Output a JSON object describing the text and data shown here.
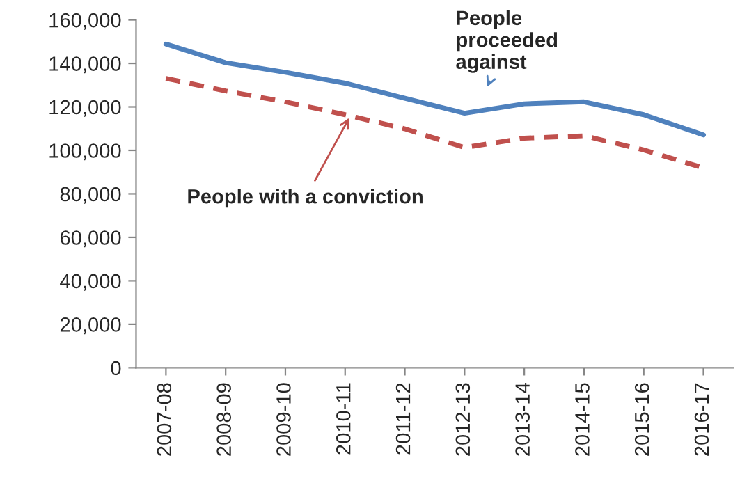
{
  "chart_data": {
    "type": "line",
    "categories": [
      "2007-08",
      "2008-09",
      "2009-10",
      "2010-11",
      "2011-12",
      "2012-13",
      "2013-14",
      "2014-15",
      "2015-16",
      "2016-17"
    ],
    "series": [
      {
        "name": "People proceeded against",
        "color": "#4f81bd",
        "line_style": "solid",
        "values": [
          148900,
          140300,
          135900,
          130900,
          124000,
          117100,
          121400,
          122300,
          116400,
          107100
        ]
      },
      {
        "name": "People with a conviction",
        "color": "#c0504d",
        "line_style": "dashed",
        "values": [
          133100,
          127300,
          122300,
          116400,
          109900,
          101300,
          105600,
          106700,
          100200,
          91900
        ]
      }
    ],
    "ylim": [
      0,
      160000
    ],
    "yticks": [
      {
        "value": 0,
        "label": "0"
      },
      {
        "value": 20000,
        "label": "20,000"
      },
      {
        "value": 40000,
        "label": "40,000"
      },
      {
        "value": 60000,
        "label": "60,000"
      },
      {
        "value": 80000,
        "label": "80,000"
      },
      {
        "value": 100000,
        "label": "100,000"
      },
      {
        "value": 120000,
        "label": "120,000"
      },
      {
        "value": 140000,
        "label": "140,000"
      },
      {
        "value": 160000,
        "label": "160,000"
      }
    ],
    "grid": false,
    "legend": false,
    "marker": "none"
  }
}
